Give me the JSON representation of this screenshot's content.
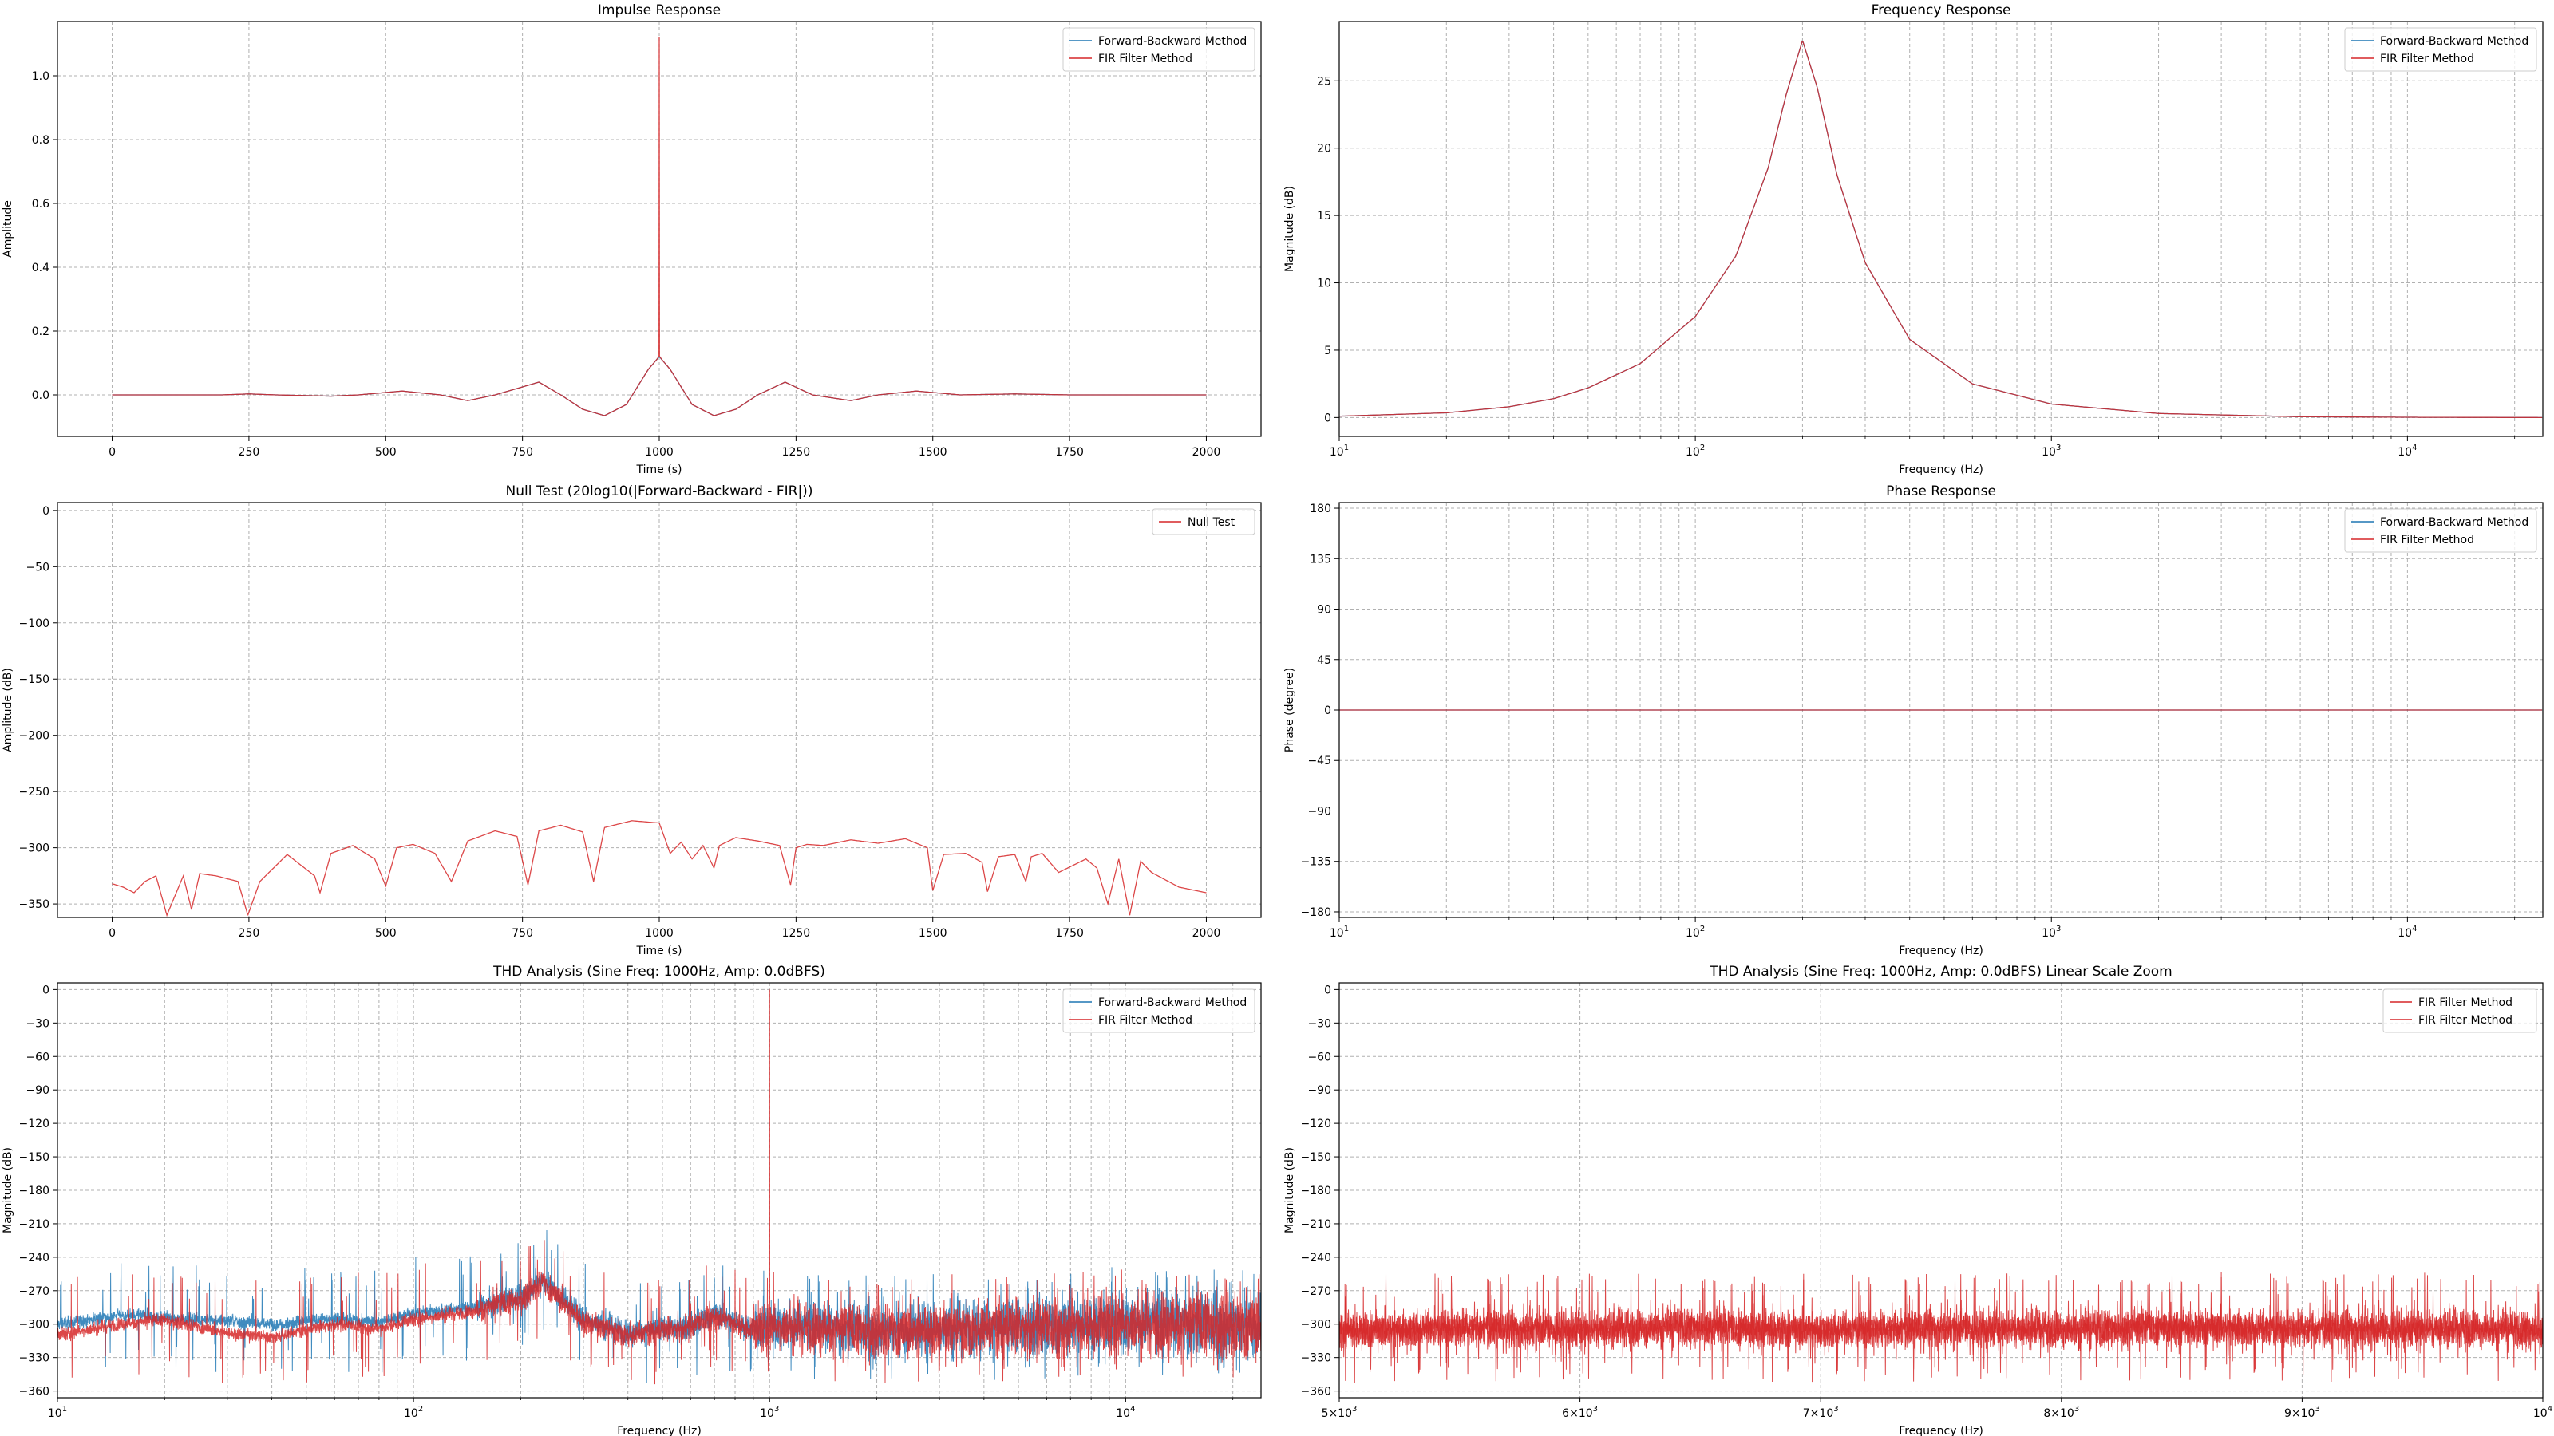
{
  "colors": {
    "blue": "#1f77b4",
    "red": "#d62728",
    "grid": "#b0b0b0"
  },
  "chart_data": [
    {
      "id": "impulse",
      "type": "line",
      "title": "Impulse Response",
      "xlabel": "Time (s)",
      "ylabel": "Amplitude",
      "xscale": "linear",
      "xlim": [
        -100,
        2100
      ],
      "ylim": [
        -0.13,
        1.17
      ],
      "xticks": [
        0,
        250,
        500,
        750,
        1000,
        1250,
        1500,
        1750,
        2000
      ],
      "xticklabels": [
        "0",
        "250",
        "500",
        "750",
        "1000",
        "1250",
        "1500",
        "1750",
        "2000"
      ],
      "yticks": [
        0.0,
        0.2,
        0.4,
        0.6,
        0.8,
        1.0
      ],
      "yticklabels": [
        "0.0",
        "0.2",
        "0.4",
        "0.6",
        "0.8",
        "1.0"
      ],
      "grid": true,
      "legend": "top-right",
      "series": [
        {
          "name": "Forward-Backward Method",
          "color": "#1f77b4",
          "x": [
            0,
            100,
            200,
            250,
            300,
            400,
            450,
            530,
            600,
            650,
            700,
            780,
            820,
            860,
            900,
            940,
            980,
            995,
            1000,
            1005,
            1020,
            1060,
            1100,
            1140,
            1180,
            1230,
            1280,
            1350,
            1400,
            1470,
            1550,
            1650,
            1750,
            1850,
            2000
          ],
          "y": [
            0.0,
            0.0,
            0.0,
            0.003,
            0.0,
            -0.004,
            0.0,
            0.012,
            0.0,
            -0.018,
            0.0,
            0.04,
            0.0,
            -0.045,
            -0.065,
            -0.03,
            0.08,
            0.11,
            0.12,
            0.11,
            0.08,
            -0.03,
            -0.065,
            -0.045,
            0.0,
            0.04,
            0.0,
            -0.018,
            0.0,
            0.012,
            0.0,
            0.003,
            0.0,
            0.0,
            0.0
          ]
        },
        {
          "name": "FIR Filter Method",
          "color": "#d62728",
          "x": [
            0,
            100,
            200,
            250,
            300,
            400,
            450,
            530,
            600,
            650,
            700,
            780,
            820,
            860,
            900,
            940,
            980,
            995,
            999,
            1000,
            1001,
            1005,
            1020,
            1060,
            1100,
            1140,
            1180,
            1230,
            1280,
            1350,
            1400,
            1470,
            1550,
            1650,
            1750,
            1850,
            2000
          ],
          "y": [
            0.0,
            0.0,
            0.0,
            0.003,
            0.0,
            -0.004,
            0.0,
            0.012,
            0.0,
            -0.018,
            0.0,
            0.04,
            0.0,
            -0.045,
            -0.065,
            -0.03,
            0.08,
            0.11,
            0.12,
            1.12,
            0.12,
            0.11,
            0.08,
            -0.03,
            -0.065,
            -0.045,
            0.0,
            0.04,
            0.0,
            -0.018,
            0.0,
            0.012,
            0.0,
            0.003,
            0.0,
            0.0,
            0.0
          ]
        }
      ]
    },
    {
      "id": "freq",
      "type": "line",
      "title": "Frequency Response",
      "xlabel": "Frequency (Hz)",
      "ylabel": "Magnitude (dB)",
      "xscale": "log",
      "xlim": [
        10,
        24000
      ],
      "ylim": [
        -1.4,
        29.4
      ],
      "xticks": [
        10,
        100,
        1000,
        10000
      ],
      "xticklabels": [
        "10^1",
        "10^2",
        "10^3",
        "10^4"
      ],
      "yticks": [
        0,
        5,
        10,
        15,
        20,
        25
      ],
      "yticklabels": [
        "0",
        "5",
        "10",
        "15",
        "20",
        "25"
      ],
      "grid": true,
      "legend": "top-right",
      "series": [
        {
          "name": "Forward-Backward Method",
          "color": "#1f77b4",
          "x": [
            10,
            20,
            30,
            40,
            50,
            70,
            100,
            130,
            160,
            180,
            200,
            220,
            250,
            300,
            400,
            600,
            1000,
            2000,
            5000,
            10000,
            24000
          ],
          "y": [
            0.1,
            0.35,
            0.8,
            1.4,
            2.2,
            4.0,
            7.5,
            12.0,
            18.5,
            24.0,
            28.0,
            24.5,
            18.0,
            11.5,
            5.8,
            2.5,
            1.0,
            0.3,
            0.06,
            0.02,
            0.0
          ]
        },
        {
          "name": "FIR Filter Method",
          "color": "#d62728",
          "x": [
            10,
            20,
            30,
            40,
            50,
            70,
            100,
            130,
            160,
            180,
            200,
            220,
            250,
            300,
            400,
            600,
            1000,
            2000,
            5000,
            10000,
            24000
          ],
          "y": [
            0.1,
            0.35,
            0.8,
            1.4,
            2.2,
            4.0,
            7.5,
            12.0,
            18.5,
            24.0,
            28.0,
            24.5,
            18.0,
            11.5,
            5.8,
            2.5,
            1.0,
            0.3,
            0.06,
            0.02,
            0.0
          ]
        }
      ]
    },
    {
      "id": "null",
      "type": "line",
      "title": "Null Test (20log10(|Forward-Backward - FIR|))",
      "xlabel": "Time (s)",
      "ylabel": "Amplitude (dB)",
      "xscale": "linear",
      "xlim": [
        -100,
        2100
      ],
      "ylim": [
        -362,
        7
      ],
      "xticks": [
        0,
        250,
        500,
        750,
        1000,
        1250,
        1500,
        1750,
        2000
      ],
      "xticklabels": [
        "0",
        "250",
        "500",
        "750",
        "1000",
        "1250",
        "1500",
        "1750",
        "2000"
      ],
      "yticks": [
        0,
        -50,
        -100,
        -150,
        -200,
        -250,
        -300,
        -350
      ],
      "yticklabels": [
        "0",
        "−50",
        "−100",
        "−150",
        "−200",
        "−250",
        "−300",
        "−350"
      ],
      "grid": true,
      "legend": "top-right",
      "series": [
        {
          "name": "Null Test",
          "color": "#d62728",
          "x": [
            0,
            20,
            40,
            60,
            80,
            100,
            130,
            145,
            160,
            190,
            230,
            248,
            270,
            320,
            370,
            380,
            400,
            440,
            480,
            500,
            520,
            550,
            590,
            620,
            650,
            700,
            740,
            760,
            780,
            820,
            860,
            880,
            900,
            950,
            1000,
            1020,
            1040,
            1060,
            1080,
            1100,
            1110,
            1140,
            1180,
            1220,
            1240,
            1250,
            1270,
            1300,
            1350,
            1400,
            1450,
            1490,
            1500,
            1520,
            1560,
            1590,
            1600,
            1620,
            1650,
            1670,
            1680,
            1700,
            1730,
            1780,
            1800,
            1820,
            1840,
            1860,
            1880,
            1900,
            1950,
            2000
          ],
          "y": [
            -332,
            -335,
            -340,
            -330,
            -325,
            -360,
            -325,
            -355,
            -323,
            -325,
            -330,
            -360,
            -330,
            -306,
            -325,
            -340,
            -305,
            -298,
            -310,
            -334,
            -300,
            -297,
            -305,
            -330,
            -294,
            -285,
            -290,
            -333,
            -285,
            -280,
            -286,
            -330,
            -282,
            -276,
            -278,
            -305,
            -295,
            -310,
            -298,
            -318,
            -298,
            -291,
            -294,
            -298,
            -333,
            -300,
            -297,
            -298,
            -293,
            -296,
            -292,
            -300,
            -338,
            -306,
            -305,
            -313,
            -339,
            -308,
            -306,
            -330,
            -308,
            -305,
            -322,
            -310,
            -318,
            -350,
            -310,
            -360,
            -312,
            -322,
            -335,
            -340
          ]
        }
      ]
    },
    {
      "id": "phase",
      "type": "line",
      "title": "Phase Response",
      "xlabel": "Frequency (Hz)",
      "ylabel": "Phase (degree)",
      "xscale": "log",
      "xlim": [
        10,
        24000
      ],
      "ylim": [
        -185,
        185
      ],
      "xticks": [
        10,
        100,
        1000,
        10000
      ],
      "xticklabels": [
        "10^1",
        "10^2",
        "10^3",
        "10^4"
      ],
      "yticks": [
        180,
        135,
        90,
        45,
        0,
        -45,
        -90,
        -135,
        -180
      ],
      "yticklabels": [
        "180",
        "135",
        "90",
        "45",
        "0",
        "−45",
        "−90",
        "−135",
        "−180"
      ],
      "grid": true,
      "legend": "top-right",
      "series": [
        {
          "name": "Forward-Backward Method",
          "color": "#1f77b4",
          "x": [
            10,
            24000
          ],
          "y": [
            0,
            0
          ]
        },
        {
          "name": "FIR Filter Method",
          "color": "#d62728",
          "x": [
            10,
            24000
          ],
          "y": [
            0,
            0
          ]
        }
      ]
    },
    {
      "id": "thd",
      "type": "line",
      "title": "THD Analysis (Sine Freq: 1000Hz, Amp: 0.0dBFS)",
      "xlabel": "Frequency (Hz)",
      "ylabel": "Magnitude (dB)",
      "xscale": "log",
      "xlim": [
        10,
        24000
      ],
      "ylim": [
        -366,
        6
      ],
      "xticks": [
        10,
        100,
        1000,
        10000
      ],
      "xticklabels": [
        "10^1",
        "10^2",
        "10^3",
        "10^4"
      ],
      "yticks": [
        0,
        -30,
        -60,
        -90,
        -120,
        -150,
        -180,
        -210,
        -240,
        -270,
        -300,
        -330,
        -360
      ],
      "yticklabels": [
        "0",
        "−30",
        "−60",
        "−90",
        "−120",
        "−150",
        "−180",
        "−210",
        "−240",
        "−270",
        "−300",
        "−330",
        "−360"
      ],
      "grid": true,
      "legend": "top-right",
      "peak": {
        "x": 1000,
        "y": 0
      },
      "series": [
        {
          "name": "Forward-Backward Method",
          "color": "#1f77b4",
          "x": [
            10,
            15,
            20,
            30,
            40,
            60,
            80,
            100,
            150,
            200,
            230,
            300,
            400,
            600,
            700,
            900,
            1000,
            2000,
            5000,
            10000,
            24000
          ],
          "y": [
            -300,
            -292,
            -294,
            -297,
            -300,
            -295,
            -298,
            -290,
            -285,
            -275,
            -260,
            -295,
            -308,
            -302,
            -290,
            -305,
            -300,
            -305,
            -303,
            -298,
            -300
          ]
        },
        {
          "name": "FIR Filter Method",
          "color": "#d62728",
          "x": [
            10,
            15,
            20,
            30,
            40,
            60,
            80,
            100,
            150,
            200,
            230,
            300,
            400,
            600,
            700,
            900,
            1000,
            2000,
            5000,
            10000,
            24000
          ],
          "y": [
            -310,
            -300,
            -296,
            -308,
            -312,
            -300,
            -304,
            -296,
            -288,
            -278,
            -262,
            -298,
            -310,
            -303,
            -292,
            -306,
            -302,
            -306,
            -304,
            -300,
            -301
          ]
        }
      ]
    },
    {
      "id": "thdzoom",
      "type": "line",
      "title": "THD Analysis (Sine Freq: 1000Hz, Amp: 0.0dBFS) Linear Scale Zoom",
      "xlabel": "Frequency (Hz)",
      "ylabel": "Magnitude (dB)",
      "xscale": "linear",
      "xlim": [
        5000,
        10000
      ],
      "ylim": [
        -366,
        6
      ],
      "xticks": [
        5000,
        6000,
        7000,
        8000,
        9000,
        10000
      ],
      "xticklabels": [
        "5×10^3",
        "6×10^3",
        "7×10^3",
        "8×10^3",
        "9×10^3",
        "10^4"
      ],
      "yticks": [
        0,
        -30,
        -60,
        -90,
        -120,
        -150,
        -180,
        -210,
        -240,
        -270,
        -300,
        -330,
        -360
      ],
      "yticklabels": [
        "0",
        "−30",
        "−60",
        "−90",
        "−120",
        "−150",
        "−180",
        "−210",
        "−240",
        "−270",
        "−300",
        "−330",
        "−360"
      ],
      "grid": true,
      "legend": "top-right",
      "series": [
        {
          "name": "FIR Filter Method",
          "color": "#d62728",
          "x": [
            5000,
            5500,
            6000,
            6500,
            7000,
            7500,
            8000,
            8500,
            9000,
            9500,
            10000
          ],
          "y": [
            -305,
            -303,
            -304,
            -302,
            -305,
            -303,
            -304,
            -302,
            -304,
            -303,
            -305
          ]
        },
        {
          "name": "FIR Filter Method",
          "color": "#d62728",
          "x": [
            5000,
            5500,
            6000,
            6500,
            7000,
            7500,
            8000,
            8500,
            9000,
            9500,
            10000
          ],
          "y": [
            -306,
            -304,
            -305,
            -303,
            -306,
            -304,
            -305,
            -303,
            -305,
            -304,
            -306
          ]
        }
      ]
    }
  ]
}
